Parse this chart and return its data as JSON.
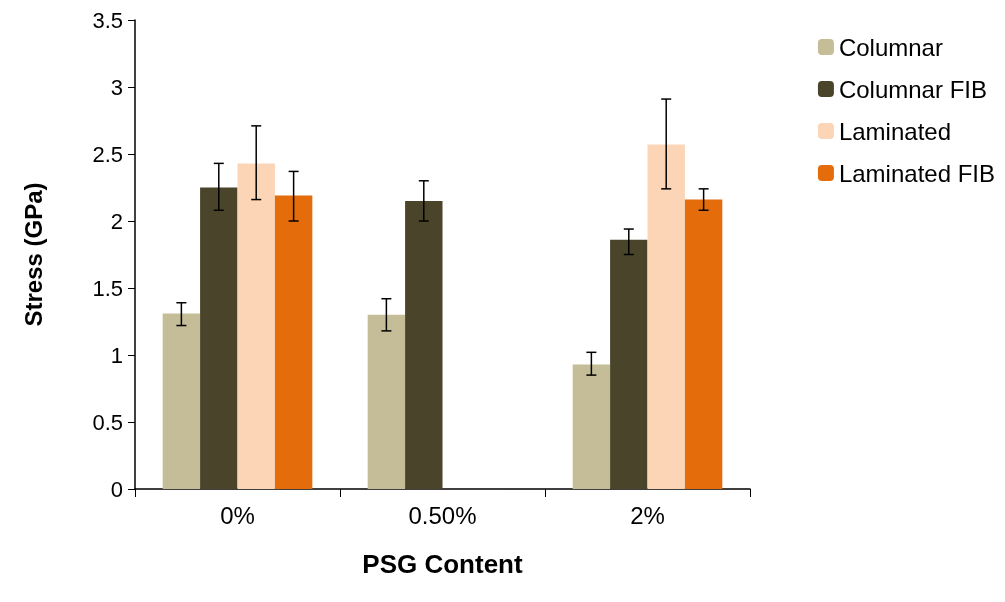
{
  "chart_data": {
    "type": "bar",
    "xlabel": "PSG Content",
    "ylabel": "Stress (GPa)",
    "categories": [
      "0%",
      "0.50%",
      "2%"
    ],
    "series": [
      {
        "name": "Columnar",
        "color": "#c4bd97",
        "values": [
          1.31,
          1.3,
          0.93
        ],
        "errors": [
          [
            1.22,
            1.39
          ],
          [
            1.18,
            1.42
          ],
          [
            0.85,
            1.02
          ]
        ]
      },
      {
        "name": "Columnar FIB",
        "color": "#4a452a",
        "values": [
          2.25,
          2.15,
          1.86
        ],
        "errors": [
          [
            2.08,
            2.43
          ],
          [
            2.0,
            2.3
          ],
          [
            1.75,
            1.94
          ]
        ]
      },
      {
        "name": "Laminated",
        "color": "#fbd5b5",
        "values": [
          2.43,
          null,
          2.57
        ],
        "errors": [
          [
            2.16,
            2.71
          ],
          null,
          [
            2.24,
            2.91
          ]
        ]
      },
      {
        "name": "Laminated FIB",
        "color": "#e46c0a",
        "values": [
          2.19,
          null,
          2.16
        ],
        "errors": [
          [
            2.0,
            2.37
          ],
          null,
          [
            2.08,
            2.24
          ]
        ]
      }
    ],
    "ylim": [
      0,
      3.5
    ],
    "yticks": [
      0,
      0.5,
      1,
      1.5,
      2,
      2.5,
      3,
      3.5
    ],
    "grid": false,
    "legend": "right"
  }
}
